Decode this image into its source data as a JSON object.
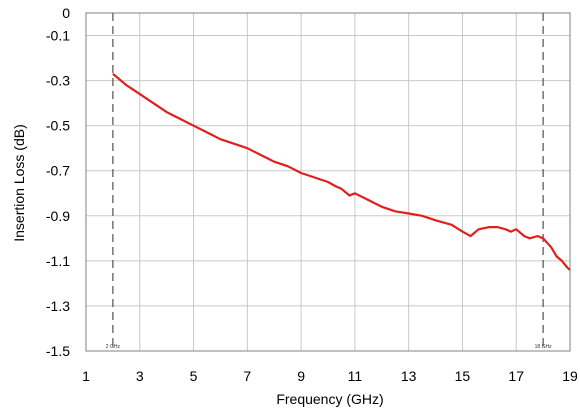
{
  "chart_data": {
    "type": "line",
    "title": "",
    "xlabel": "Frequency (GHz)",
    "ylabel": "Insertion Loss (dB)",
    "xlim": [
      1,
      19
    ],
    "ylim": [
      -1.5,
      0
    ],
    "x_ticks": [
      1,
      3,
      5,
      7,
      9,
      11,
      13,
      15,
      17,
      19
    ],
    "y_ticks": [
      0,
      -0.1,
      -0.3,
      -0.5,
      -0.7,
      -0.9,
      -1.1,
      -1.3,
      -1.5
    ],
    "x_tick_labels": [
      "1",
      "3",
      "5",
      "7",
      "9",
      "11",
      "13",
      "15",
      "17",
      "19"
    ],
    "y_tick_labels": [
      "0",
      "-0.1",
      "-0.3",
      "-0.5",
      "-0.7",
      "-0.9",
      "-1.1",
      "-1.3",
      "-1.5"
    ],
    "grid": true,
    "markers": [
      {
        "x": 2,
        "label": "2 GHz"
      },
      {
        "x": 18,
        "label": "18 GHz"
      }
    ],
    "series": [
      {
        "color": "#e0201c",
        "x": [
          2,
          2.5,
          3,
          3.5,
          4,
          4.5,
          5,
          5.5,
          6,
          6.5,
          7,
          7.5,
          8,
          8.5,
          9,
          9.5,
          10,
          10.3,
          10.5,
          10.8,
          11,
          11.5,
          12,
          12.5,
          13,
          13.5,
          14,
          14.3,
          14.6,
          15,
          15.3,
          15.6,
          16,
          16.3,
          16.6,
          16.8,
          17,
          17.3,
          17.5,
          17.8,
          18,
          18.3,
          18.5,
          18.7,
          18.9,
          19
        ],
        "y": [
          -0.27,
          -0.32,
          -0.36,
          -0.4,
          -0.44,
          -0.47,
          -0.5,
          -0.53,
          -0.56,
          -0.58,
          -0.6,
          -0.63,
          -0.66,
          -0.68,
          -0.71,
          -0.73,
          -0.75,
          -0.77,
          -0.78,
          -0.81,
          -0.8,
          -0.83,
          -0.86,
          -0.88,
          -0.89,
          -0.9,
          -0.92,
          -0.93,
          -0.94,
          -0.97,
          -0.99,
          -0.96,
          -0.95,
          -0.95,
          -0.96,
          -0.97,
          -0.96,
          -0.99,
          -1.0,
          -0.99,
          -1.0,
          -1.04,
          -1.08,
          -1.1,
          -1.13,
          -1.14
        ]
      }
    ]
  }
}
